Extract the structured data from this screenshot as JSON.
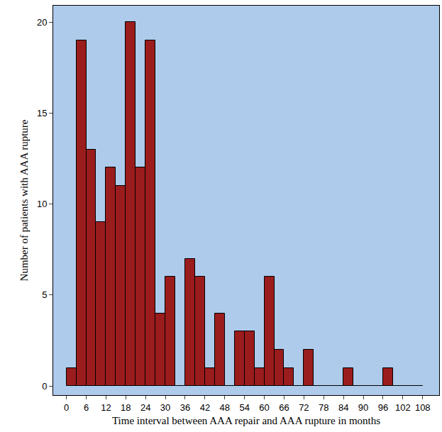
{
  "chart_data": {
    "type": "histogram",
    "x_label": "Time interval between AAA repair and AAA rupture in months",
    "y_label": "Number of patients with AAA rupture",
    "bins": [
      0,
      3,
      6,
      9,
      12,
      15,
      18,
      21,
      24,
      27,
      30,
      33,
      36,
      39,
      42,
      45,
      48,
      51,
      54,
      57,
      60,
      63,
      66,
      69,
      72,
      75,
      78,
      81,
      84,
      87,
      90,
      93,
      96,
      99,
      102,
      105,
      108
    ],
    "values": [
      1,
      19,
      13,
      9,
      12,
      11,
      20,
      12,
      19,
      4,
      6,
      0,
      7,
      6,
      1,
      4,
      0,
      3,
      3,
      1,
      6,
      2,
      1,
      0,
      2,
      0,
      0,
      0,
      1,
      0,
      0,
      0,
      1,
      0,
      0,
      0
    ],
    "color": "#9b1c1c",
    "xlim": [
      -4,
      113
    ],
    "ylim": [
      -0.5,
      20.9
    ],
    "xticks": [
      0,
      6,
      12,
      18,
      24,
      30,
      36,
      42,
      48,
      54,
      60,
      66,
      72,
      78,
      84,
      90,
      96,
      102,
      108
    ],
    "yticks": [
      0,
      5,
      10,
      15,
      20
    ],
    "grid": false
  }
}
